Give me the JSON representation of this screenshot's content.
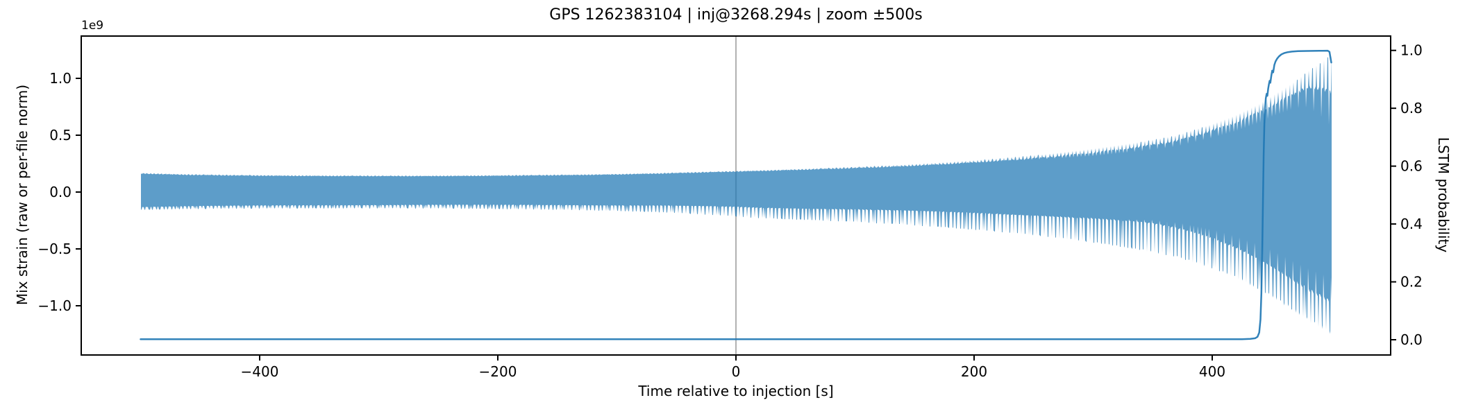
{
  "figure": {
    "background": "#ffffff"
  },
  "chart_data": {
    "type": "line",
    "title": "GPS 1262383104 | inj@3268.294s | zoom ±500s",
    "xlabel": "Time relative to injection [s]",
    "ylabel_left": "Mix strain (raw or per-file norm)",
    "ylabel_left_offset": "1e9",
    "ylabel_right": "LSTM probability",
    "xlim": [
      -550,
      550
    ],
    "ylim_left_1e9": [
      -1.43,
      1.37
    ],
    "ylim_right": [
      -0.05,
      1.05
    ],
    "xticks": [
      -400,
      -200,
      0,
      200,
      400
    ],
    "xtick_labels": [
      "−400",
      "−200",
      "0",
      "200",
      "400"
    ],
    "yticks_left_1e9": [
      1.0,
      0.5,
      0.0,
      -0.5,
      -1.0
    ],
    "ytick_left_labels": [
      "1.0",
      "0.5",
      "0.0",
      "−0.5",
      "−1.0"
    ],
    "yticks_right": [
      0.0,
      0.2,
      0.4,
      0.6,
      0.8,
      1.0
    ],
    "ytick_right_labels": [
      "0.0",
      "0.2",
      "0.4",
      "0.6",
      "0.8",
      "1.0"
    ],
    "grid": false,
    "legend": "none",
    "injection_vline_x": 0,
    "series": [
      {
        "name": "mix-strain-waveform",
        "type": "filled-oscillation",
        "axis": "left",
        "color": "#1f77b4",
        "fill_opacity": 0.72,
        "modulation_period_s": 3.2,
        "x_range_s": [
          -500,
          500
        ],
        "envelope_top_1e9": [
          [
            -500,
            0.17
          ],
          [
            -460,
            0.158
          ],
          [
            -420,
            0.152
          ],
          [
            -380,
            0.149
          ],
          [
            -340,
            0.147
          ],
          [
            -300,
            0.146
          ],
          [
            -260,
            0.146
          ],
          [
            -220,
            0.148
          ],
          [
            -180,
            0.151
          ],
          [
            -140,
            0.155
          ],
          [
            -100,
            0.161
          ],
          [
            -60,
            0.17
          ],
          [
            -20,
            0.181
          ],
          [
            20,
            0.193
          ],
          [
            60,
            0.207
          ],
          [
            100,
            0.222
          ],
          [
            140,
            0.241
          ],
          [
            180,
            0.266
          ],
          [
            220,
            0.296
          ],
          [
            260,
            0.334
          ],
          [
            300,
            0.383
          ],
          [
            340,
            0.443
          ],
          [
            370,
            0.5
          ],
          [
            400,
            0.6
          ],
          [
            420,
            0.68
          ],
          [
            440,
            0.78
          ],
          [
            455,
            0.88
          ],
          [
            470,
            0.98
          ],
          [
            482,
            1.08
          ],
          [
            491,
            1.14
          ],
          [
            497,
            1.19
          ],
          [
            500,
            1.21
          ]
        ],
        "envelope_bottom_1e9": [
          [
            -500,
            -0.158
          ],
          [
            -460,
            -0.151
          ],
          [
            -420,
            -0.148
          ],
          [
            -380,
            -0.146
          ],
          [
            -340,
            -0.145
          ],
          [
            -300,
            -0.145
          ],
          [
            -260,
            -0.146
          ],
          [
            -220,
            -0.149
          ],
          [
            -180,
            -0.153
          ],
          [
            -140,
            -0.159
          ],
          [
            -100,
            -0.168
          ],
          [
            -60,
            -0.181
          ],
          [
            -20,
            -0.203
          ],
          [
            20,
            -0.232
          ],
          [
            60,
            -0.248
          ],
          [
            100,
            -0.266
          ],
          [
            140,
            -0.289
          ],
          [
            180,
            -0.318
          ],
          [
            220,
            -0.352
          ],
          [
            260,
            -0.394
          ],
          [
            300,
            -0.448
          ],
          [
            340,
            -0.513
          ],
          [
            370,
            -0.575
          ],
          [
            400,
            -0.675
          ],
          [
            420,
            -0.76
          ],
          [
            440,
            -0.865
          ],
          [
            455,
            -0.96
          ],
          [
            470,
            -1.06
          ],
          [
            482,
            -1.15
          ],
          [
            491,
            -1.2
          ],
          [
            497,
            -1.24
          ],
          [
            500,
            -1.25
          ]
        ]
      },
      {
        "name": "lstm-probability",
        "type": "line",
        "axis": "right",
        "color": "#1f77b4",
        "line_opacity": 0.92,
        "points": [
          [
            -500,
            0.002
          ],
          [
            -400,
            0.002
          ],
          [
            -300,
            0.002
          ],
          [
            -200,
            0.002
          ],
          [
            -100,
            0.002
          ],
          [
            0,
            0.002
          ],
          [
            100,
            0.002
          ],
          [
            200,
            0.002
          ],
          [
            300,
            0.002
          ],
          [
            400,
            0.002
          ],
          [
            425,
            0.002
          ],
          [
            432,
            0.003
          ],
          [
            436,
            0.005
          ],
          [
            438,
            0.01
          ],
          [
            439.5,
            0.025
          ],
          [
            440.5,
            0.07
          ],
          [
            441.3,
            0.16
          ],
          [
            442,
            0.3
          ],
          [
            442.6,
            0.48
          ],
          [
            443.2,
            0.64
          ],
          [
            443.8,
            0.745
          ],
          [
            444.4,
            0.8
          ],
          [
            445,
            0.835
          ],
          [
            445.7,
            0.85
          ],
          [
            446.3,
            0.843
          ],
          [
            447,
            0.868
          ],
          [
            447.6,
            0.882
          ],
          [
            448.2,
            0.895
          ],
          [
            448.8,
            0.888
          ],
          [
            449.6,
            0.912
          ],
          [
            450.4,
            0.93
          ],
          [
            451.2,
            0.924
          ],
          [
            452.2,
            0.95
          ],
          [
            453.2,
            0.962
          ],
          [
            454.6,
            0.972
          ],
          [
            456,
            0.979
          ],
          [
            458,
            0.986
          ],
          [
            460.5,
            0.991
          ],
          [
            463.5,
            0.994
          ],
          [
            467,
            0.996
          ],
          [
            472,
            0.9975
          ],
          [
            480,
            0.998
          ],
          [
            490,
            0.9985
          ],
          [
            497,
            0.999
          ],
          [
            498.5,
            0.995
          ],
          [
            500,
            0.958
          ]
        ]
      }
    ]
  },
  "colors": {
    "axes": "#000000",
    "text": "#000000",
    "vline": "#b4b4b4",
    "strain_fill": "#1f77b4",
    "prob_line": "#1f77b4"
  }
}
